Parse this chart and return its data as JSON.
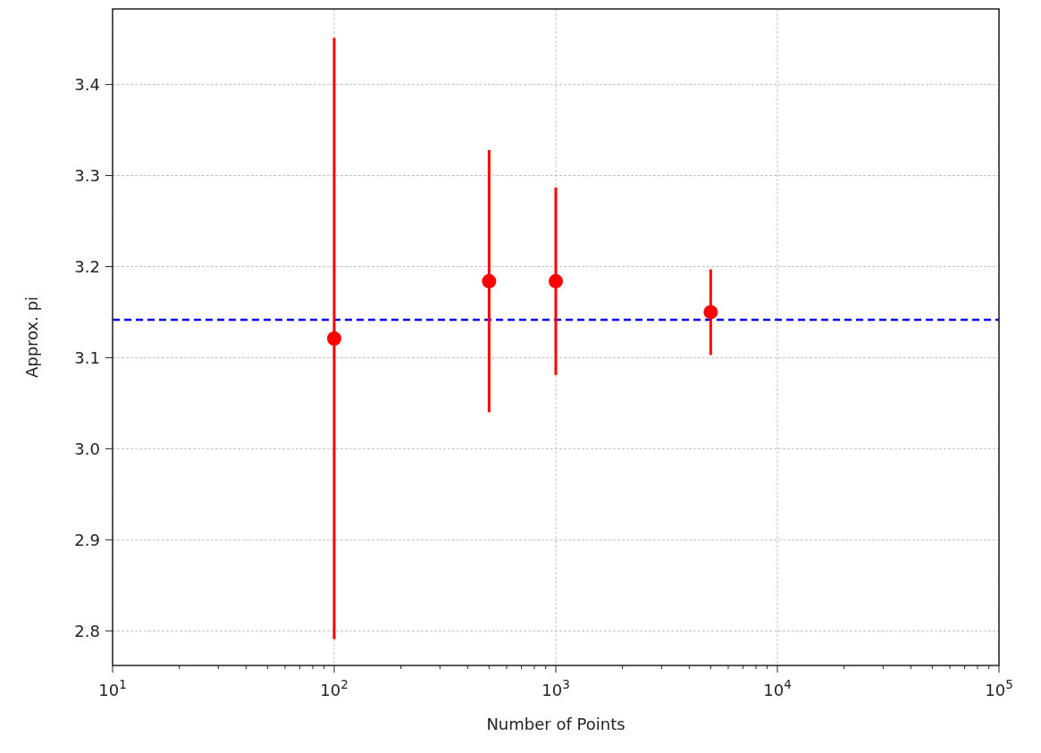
{
  "chart_data": {
    "type": "scatter",
    "xlabel": "Number of Points",
    "ylabel": "Approx. pi",
    "x": [
      100,
      500,
      1000,
      5000
    ],
    "series": [
      {
        "color": "#ff0000",
        "values": [
          3.121,
          3.184,
          3.184,
          3.15
        ],
        "errors": [
          0.33,
          0.144,
          0.103,
          0.047
        ]
      }
    ],
    "log": "x",
    "marker": "circle",
    "grid": true,
    "xlim": [
      10,
      100000
    ],
    "xticks": [
      {
        "value": 10,
        "label": "10$^{1}$"
      },
      {
        "value": 20,
        "label": null
      },
      {
        "value": 30,
        "label": null
      },
      {
        "value": 40,
        "label": null
      },
      {
        "value": 50,
        "label": null
      },
      {
        "value": 60,
        "label": null
      },
      {
        "value": 70,
        "label": null
      },
      {
        "value": 80,
        "label": null
      },
      {
        "value": 90,
        "label": null
      },
      {
        "value": 100,
        "label": "10$^{2}$"
      },
      {
        "value": 200,
        "label": null
      },
      {
        "value": 300,
        "label": null
      },
      {
        "value": 400,
        "label": null
      },
      {
        "value": 500,
        "label": null
      },
      {
        "value": 600,
        "label": null
      },
      {
        "value": 700,
        "label": null
      },
      {
        "value": 800,
        "label": null
      },
      {
        "value": 900,
        "label": null
      },
      {
        "value": 1000,
        "label": "10$^{3}$"
      },
      {
        "value": 2000,
        "label": null
      },
      {
        "value": 3000,
        "label": null
      },
      {
        "value": 4000,
        "label": null
      },
      {
        "value": 5000,
        "label": null
      },
      {
        "value": 6000,
        "label": null
      },
      {
        "value": 7000,
        "label": null
      },
      {
        "value": 8000,
        "label": null
      },
      {
        "value": 9000,
        "label": null
      },
      {
        "value": 10000,
        "label": "10$^{4}$"
      },
      {
        "value": 20000,
        "label": null
      },
      {
        "value": 30000,
        "label": null
      },
      {
        "value": 40000,
        "label": null
      },
      {
        "value": 50000,
        "label": null
      },
      {
        "value": 60000,
        "label": null
      },
      {
        "value": 70000,
        "label": null
      },
      {
        "value": 80000,
        "label": null
      },
      {
        "value": 90000,
        "label": null
      },
      {
        "value": 100000,
        "label": "10$^{5}$"
      }
    ],
    "ylim": [
      2.762,
      3.483
    ],
    "yticks": [
      2.8,
      2.9,
      {
        "value": 3,
        "label": "3.0"
      },
      3.1,
      3.2,
      3.3,
      3.4
    ],
    "ref_lines": [
      {
        "axis": "y",
        "value": 3.14159,
        "color": "#0000ff",
        "line_style": "dashed"
      }
    ]
  }
}
